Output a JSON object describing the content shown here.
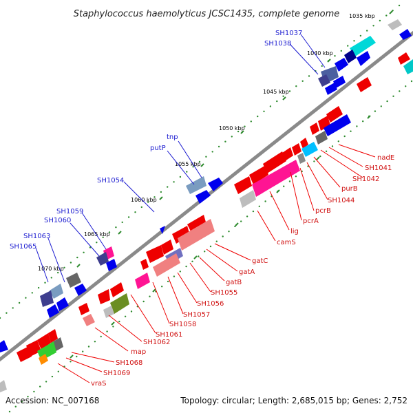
{
  "title": "Staphylococcus haemolyticus JCSC1435, complete genome",
  "footer": {
    "accession": "Accession: NC_007168",
    "summary": "Topology: circular; Length: 2,685,015 bp; Genes: 2,752"
  },
  "ticks": [
    "1035 kbp",
    "1040 kbp",
    "1045 kbp",
    "1050 kbp",
    "1055 kbp",
    "1060 kbp",
    "1065 kbp",
    "1070 kbp"
  ],
  "blue_labels": [
    "SH1037",
    "SH1038",
    "tnp",
    "putP",
    "SH1054",
    "SH1059",
    "SH1060",
    "SH1063",
    "SH1065"
  ],
  "red_labels": [
    "nadE",
    "SH1041",
    "SH1042",
    "purB",
    "SH1044",
    "pcrB",
    "pcrA",
    "lig",
    "camS",
    "gatC",
    "gatA",
    "gatB",
    "SH1055",
    "SH1056",
    "SH1057",
    "SH1058",
    "SH1061",
    "SH1062",
    "map",
    "SH1068",
    "SH1069",
    "vraS"
  ],
  "colors": {
    "forward_strand": "#0000ee",
    "reverse_strand": "#ee0000",
    "backbone": "#888888",
    "tick_dots": "#2e8b2e",
    "blue_label": "#1a1ad0",
    "red_label": "#d01010"
  }
}
